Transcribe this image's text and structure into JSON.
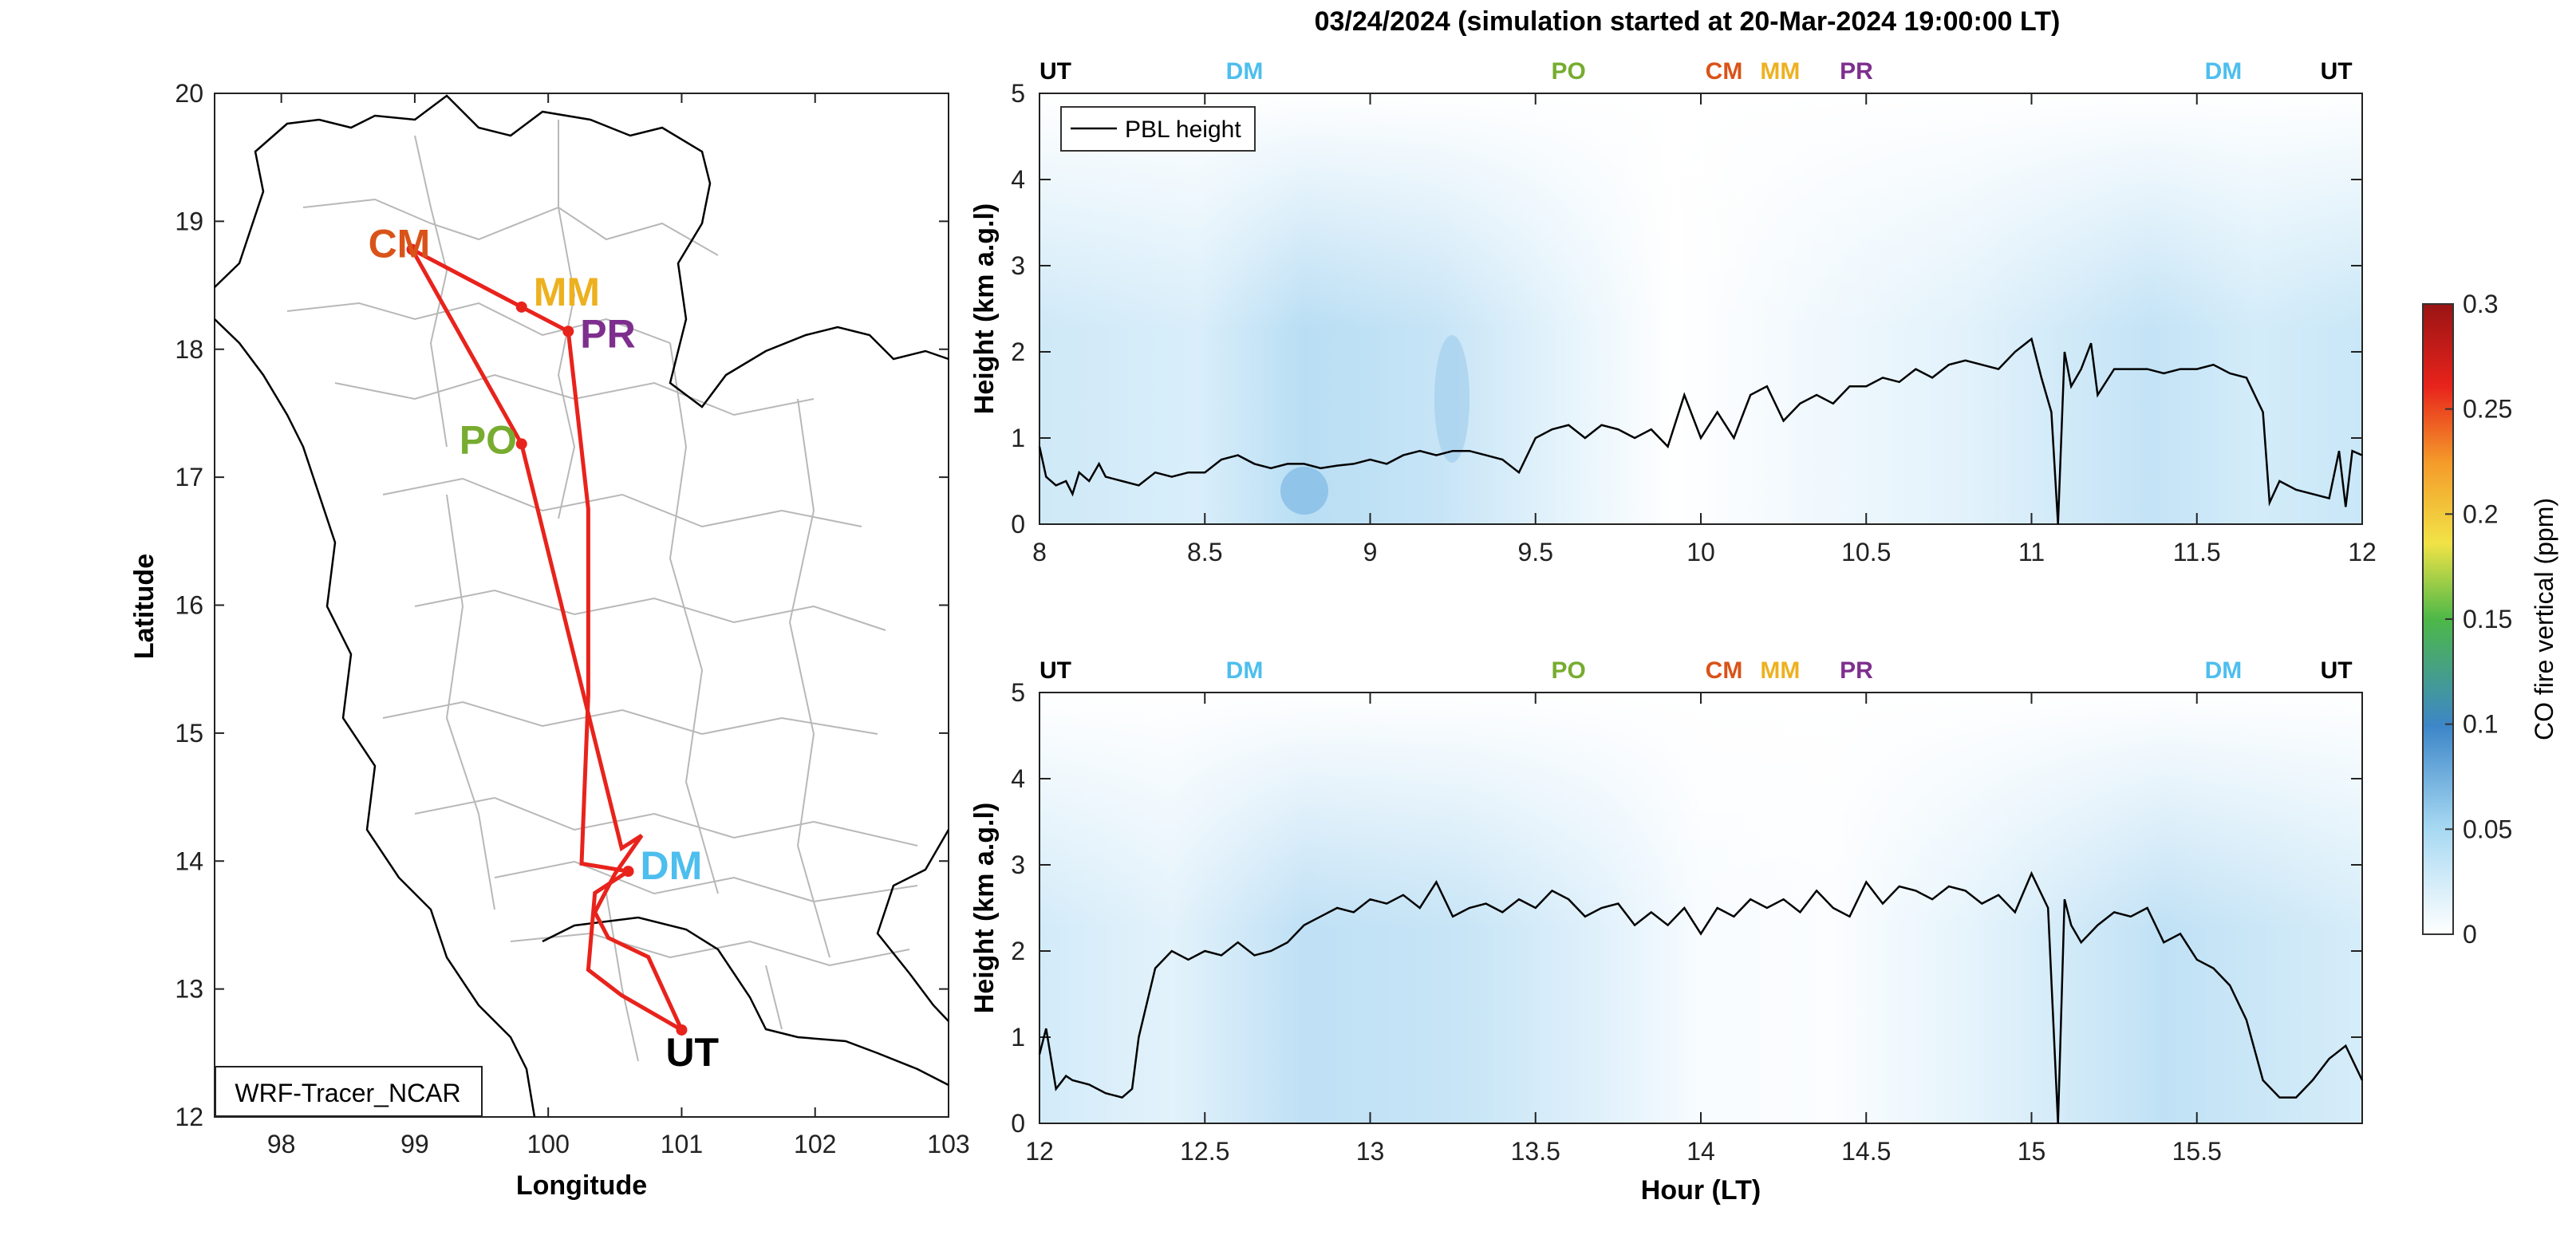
{
  "figure": {
    "title": "03/24/2024 (simulation started at 20-Mar-2024 19:00:00 LT)"
  },
  "map": {
    "xlabel": "Longitude",
    "ylabel": "Latitude",
    "xticks": [
      "98",
      "99",
      "100",
      "101",
      "102",
      "103"
    ],
    "yticks": [
      "12",
      "13",
      "14",
      "15",
      "16",
      "17",
      "18",
      "19",
      "20"
    ],
    "xlim": [
      97.5,
      103
    ],
    "ylim": [
      12,
      20
    ],
    "model_label": "WRF-Tracer_NCAR",
    "route_color": "#e8231c",
    "stations": [
      {
        "code": "CM",
        "lon": 98.98,
        "lat": 18.78,
        "color": "#d95319"
      },
      {
        "code": "MM",
        "lon": 99.8,
        "lat": 18.33,
        "color": "#edb120"
      },
      {
        "code": "PR",
        "lon": 100.15,
        "lat": 18.14,
        "color": "#7e2f8e"
      },
      {
        "code": "PO",
        "lon": 99.8,
        "lat": 17.26,
        "color": "#77ac30"
      },
      {
        "code": "DM",
        "lon": 100.6,
        "lat": 13.92,
        "color": "#4dbeee"
      },
      {
        "code": "UT",
        "lon": 101.0,
        "lat": 12.68,
        "color": "#000000"
      }
    ]
  },
  "panels": {
    "ylabel": "Height (km a.g.l)",
    "xlabel": "Hour (LT)",
    "legend_label": "PBL height",
    "yticks": [
      "0",
      "1",
      "2",
      "3",
      "4",
      "5"
    ],
    "top": {
      "xticks": [
        "8",
        "8.5",
        "9",
        "9.5",
        "10",
        "10.5",
        "11",
        "11.5",
        "12"
      ],
      "station_marks": [
        {
          "code": "UT",
          "hour": 8.0,
          "color": "#000000"
        },
        {
          "code": "DM",
          "hour": 8.62,
          "color": "#4dbeee"
        },
        {
          "code": "PO",
          "hour": 9.6,
          "color": "#77ac30"
        },
        {
          "code": "CM",
          "hour": 10.07,
          "color": "#d95319"
        },
        {
          "code": "MM",
          "hour": 10.3,
          "color": "#edb120"
        },
        {
          "code": "PR",
          "hour": 10.42,
          "color": "#7e2f8e"
        },
        {
          "code": "DM",
          "hour": 11.58,
          "color": "#4dbeee"
        },
        {
          "code": "UT",
          "hour": 11.97,
          "color": "#000000"
        }
      ]
    },
    "bottom": {
      "xticks": [
        "12",
        "12.5",
        "13",
        "13.5",
        "14",
        "14.5",
        "15",
        "15.5"
      ],
      "station_marks": [
        {
          "code": "UT",
          "hour": 12.0,
          "color": "#000000"
        },
        {
          "code": "DM",
          "hour": 12.62,
          "color": "#4dbeee"
        },
        {
          "code": "PO",
          "hour": 13.6,
          "color": "#77ac30"
        },
        {
          "code": "CM",
          "hour": 14.07,
          "color": "#d95319"
        },
        {
          "code": "MM",
          "hour": 14.3,
          "color": "#edb120"
        },
        {
          "code": "PR",
          "hour": 14.42,
          "color": "#7e2f8e"
        },
        {
          "code": "DM",
          "hour": 15.58,
          "color": "#4dbeee"
        },
        {
          "code": "UT",
          "hour": 15.97,
          "color": "#000000"
        }
      ]
    }
  },
  "colorbar": {
    "label": "CO fire vertical (ppm)",
    "ticks": [
      "0",
      "0.05",
      "0.1",
      "0.15",
      "0.2",
      "0.25",
      "0.3"
    ],
    "range": [
      0,
      0.3
    ]
  },
  "chart_data": [
    {
      "type": "line",
      "series": [
        {
          "name": "PBL height",
          "x": [
            8.0,
            8.02,
            8.05,
            8.08,
            8.1,
            8.12,
            8.15,
            8.18,
            8.2,
            8.25,
            8.3,
            8.35,
            8.4,
            8.45,
            8.5,
            8.55,
            8.6,
            8.65,
            8.7,
            8.75,
            8.8,
            8.85,
            8.9,
            8.95,
            9.0,
            9.05,
            9.1,
            9.15,
            9.2,
            9.25,
            9.3,
            9.35,
            9.4,
            9.45,
            9.5,
            9.55,
            9.6,
            9.65,
            9.7,
            9.75,
            9.8,
            9.85,
            9.9,
            9.95,
            10.0,
            10.05,
            10.1,
            10.15,
            10.2,
            10.25,
            10.3,
            10.35,
            10.4,
            10.45,
            10.5,
            10.55,
            10.6,
            10.65,
            10.7,
            10.75,
            10.8,
            10.85,
            10.9,
            10.95,
            11.0,
            11.03,
            11.06,
            11.08,
            11.1,
            11.12,
            11.15,
            11.18,
            11.2,
            11.25,
            11.3,
            11.35,
            11.4,
            11.45,
            11.5,
            11.55,
            11.6,
            11.65,
            11.7,
            11.72,
            11.75,
            11.8,
            11.85,
            11.9,
            11.93,
            11.95,
            11.97,
            12.0
          ],
          "y": [
            0.9,
            0.55,
            0.45,
            0.5,
            0.35,
            0.6,
            0.5,
            0.7,
            0.55,
            0.5,
            0.45,
            0.6,
            0.55,
            0.6,
            0.6,
            0.75,
            0.8,
            0.7,
            0.65,
            0.7,
            0.7,
            0.65,
            0.68,
            0.7,
            0.75,
            0.7,
            0.8,
            0.85,
            0.8,
            0.85,
            0.85,
            0.8,
            0.75,
            0.6,
            1.0,
            1.1,
            1.15,
            1.0,
            1.15,
            1.1,
            1.0,
            1.1,
            0.9,
            1.5,
            1.0,
            1.3,
            1.0,
            1.5,
            1.6,
            1.2,
            1.4,
            1.5,
            1.4,
            1.6,
            1.6,
            1.7,
            1.65,
            1.8,
            1.7,
            1.85,
            1.9,
            1.85,
            1.8,
            2.0,
            2.15,
            1.7,
            1.3,
            0.0,
            2.0,
            1.6,
            1.8,
            2.1,
            1.5,
            1.8,
            1.8,
            1.8,
            1.75,
            1.8,
            1.8,
            1.85,
            1.75,
            1.7,
            1.3,
            0.25,
            0.5,
            0.4,
            0.35,
            0.3,
            0.85,
            0.2,
            0.85,
            0.8
          ]
        }
      ],
      "xlabel": "",
      "ylabel": "Height (km a.g.l)",
      "xlim": [
        8,
        12
      ],
      "ylim": [
        0,
        5
      ]
    },
    {
      "type": "line",
      "series": [
        {
          "name": "PBL height",
          "x": [
            12.0,
            12.02,
            12.05,
            12.08,
            12.1,
            12.15,
            12.2,
            12.25,
            12.28,
            12.3,
            12.35,
            12.4,
            12.45,
            12.5,
            12.55,
            12.6,
            12.65,
            12.7,
            12.75,
            12.8,
            12.85,
            12.9,
            12.95,
            13.0,
            13.05,
            13.1,
            13.15,
            13.2,
            13.25,
            13.3,
            13.35,
            13.4,
            13.45,
            13.5,
            13.55,
            13.6,
            13.65,
            13.7,
            13.75,
            13.8,
            13.85,
            13.9,
            13.95,
            14.0,
            14.05,
            14.1,
            14.15,
            14.2,
            14.25,
            14.3,
            14.35,
            14.4,
            14.45,
            14.5,
            14.55,
            14.6,
            14.65,
            14.7,
            14.75,
            14.8,
            14.85,
            14.9,
            14.95,
            15.0,
            15.05,
            15.08,
            15.1,
            15.12,
            15.15,
            15.2,
            15.25,
            15.3,
            15.35,
            15.4,
            15.45,
            15.5,
            15.55,
            15.6,
            15.65,
            15.7,
            15.75,
            15.8,
            15.85,
            15.9,
            15.95,
            16.0
          ],
          "y": [
            0.8,
            1.1,
            0.4,
            0.55,
            0.5,
            0.45,
            0.35,
            0.3,
            0.4,
            1.0,
            1.8,
            2.0,
            1.9,
            2.0,
            1.95,
            2.1,
            1.95,
            2.0,
            2.1,
            2.3,
            2.4,
            2.5,
            2.45,
            2.6,
            2.55,
            2.65,
            2.5,
            2.8,
            2.4,
            2.5,
            2.55,
            2.45,
            2.6,
            2.5,
            2.7,
            2.6,
            2.4,
            2.5,
            2.55,
            2.3,
            2.45,
            2.3,
            2.5,
            2.2,
            2.5,
            2.4,
            2.6,
            2.5,
            2.6,
            2.45,
            2.7,
            2.5,
            2.4,
            2.8,
            2.55,
            2.75,
            2.7,
            2.6,
            2.75,
            2.7,
            2.55,
            2.65,
            2.45,
            2.9,
            2.5,
            0.0,
            2.6,
            2.3,
            2.1,
            2.3,
            2.45,
            2.4,
            2.5,
            2.1,
            2.2,
            1.9,
            1.8,
            1.6,
            1.2,
            0.5,
            0.3,
            0.3,
            0.5,
            0.75,
            0.9,
            0.5
          ]
        }
      ],
      "xlabel": "Hour (LT)",
      "ylabel": "Height (km a.g.l)",
      "xlim": [
        12,
        16
      ],
      "ylim": [
        0,
        5
      ]
    }
  ]
}
